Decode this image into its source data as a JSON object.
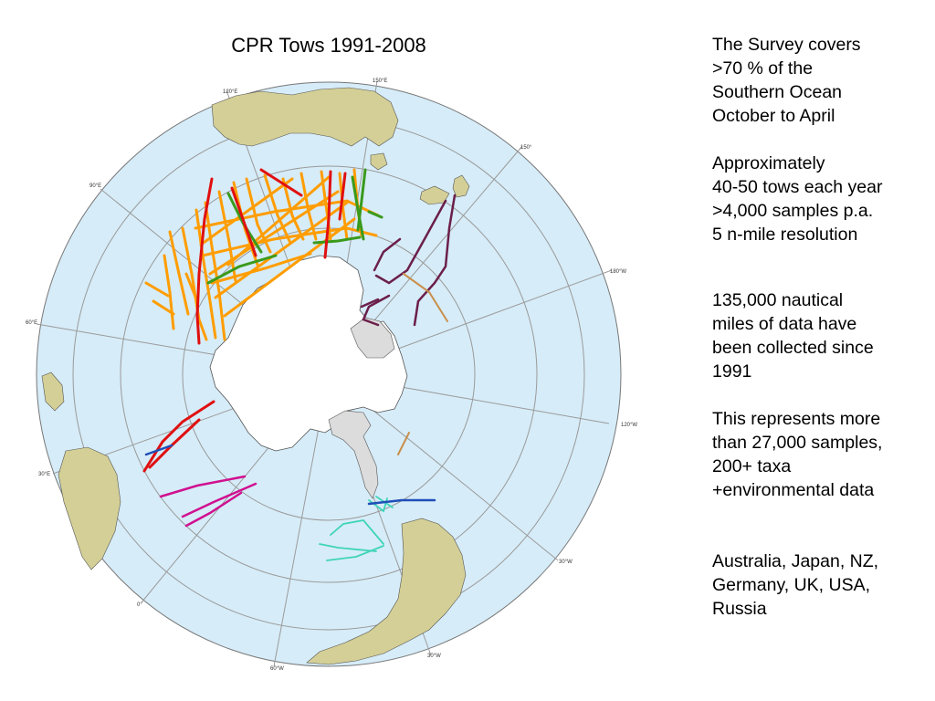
{
  "title": "CPR Tows 1991-2008",
  "text_blocks": [
    "The Survey covers\n>70 % of the\nSouthern Ocean\nOctober to April",
    "Approximately\n40-50 tows each year\n>4,000 samples p.a.\n5 n-mile resolution",
    "135,000 nautical\nmiles of data have\nbeen collected since\n1991",
    "This represents more\nthan 27,000 samples,\n200+ taxa\n+environmental data",
    "Australia, Japan, NZ,\nGermany, UK, USA,\nRussia"
  ],
  "graticule_labels": [
    "120°E",
    "150°E",
    "90°E",
    "150°",
    "60°E",
    "180°W",
    "120°W",
    "30°E",
    "30°W",
    "0°",
    "30°W",
    "60°W"
  ],
  "colors": {
    "ocean": "#d6ecf8",
    "land": "#d4cf96",
    "ice": "#ffffff",
    "ice_shelf": "#dcdcdc",
    "grid": "#9a9a9a",
    "tow_orange": "#ff9d00",
    "tow_green": "#3a9a1c",
    "tow_red": "#e01010",
    "tow_purple": "#6b1f4a",
    "tow_magenta": "#d01090",
    "tow_cyan": "#3fd4b8",
    "tow_blue": "#1f4fb8",
    "tow_tan": "#c98f4a"
  }
}
